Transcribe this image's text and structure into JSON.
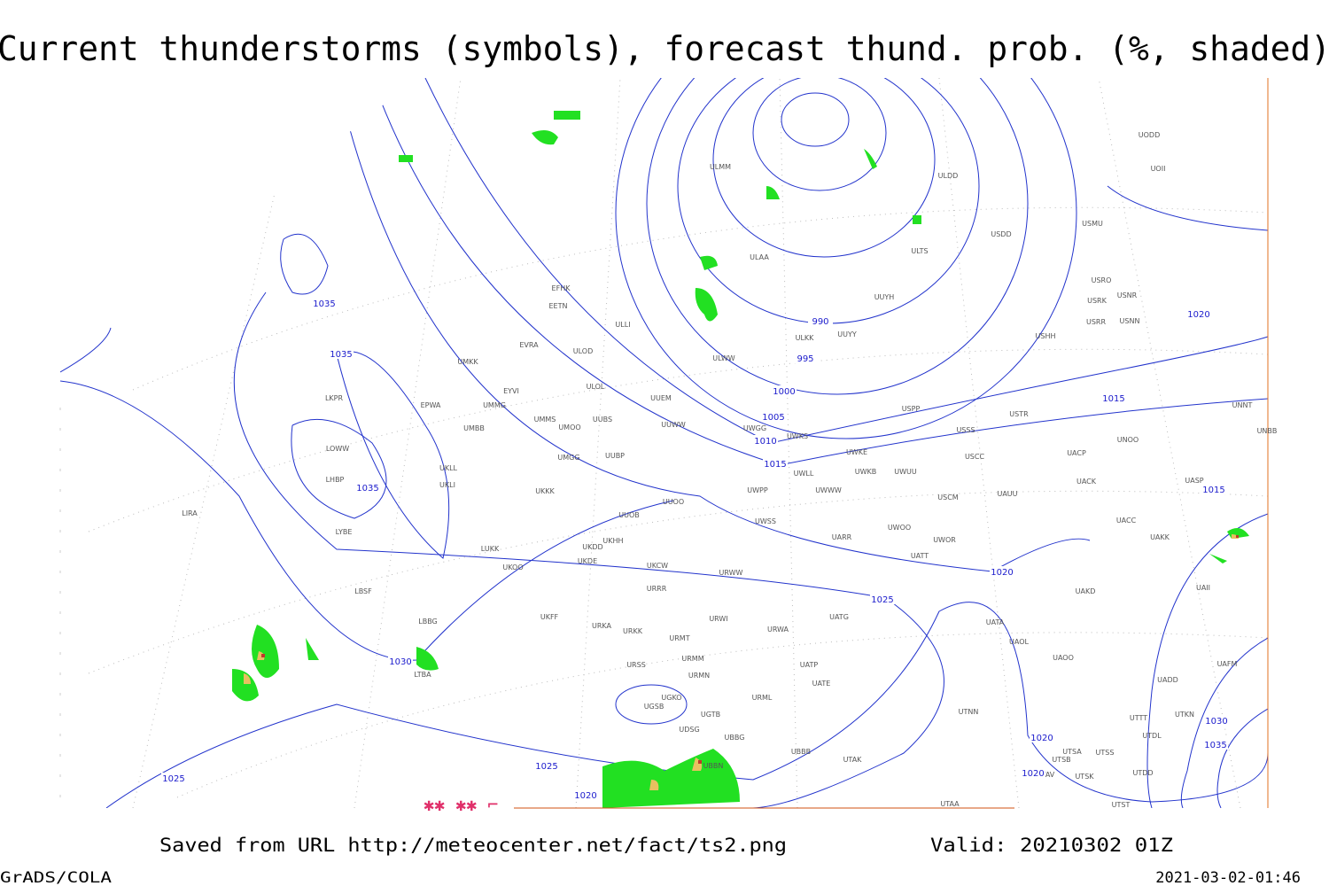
{
  "title": "Current thunderstorms (symbols), forecast thund. prob. (%, shaded)",
  "footer": {
    "saved": "Saved from URL http://meteocenter.net/fact/ts2.png",
    "valid": "Valid: 20210302 01Z",
    "brand": "GrADS/COLA",
    "timestamp": "2021-03-02-01:46"
  },
  "stations": [
    "UODD",
    "UOII",
    "ULDD",
    "ULMM",
    "USMU",
    "USDD",
    "ULTS",
    "ULAA",
    "USRO",
    "USRK",
    "USNR",
    "USRR",
    "USNN",
    "UUYH",
    "ULKK",
    "UUYY",
    "USHH",
    "EFHK",
    "EETN",
    "ULLI",
    "EVRA",
    "ULOD",
    "UMKK",
    "ULWW",
    "ULOL",
    "EYVI",
    "UUEM",
    "EPWA",
    "UMMG",
    "UMMS",
    "UMOO",
    "UUBS",
    "UUWW",
    "UWGG",
    "UWKS",
    "USPP",
    "USTR",
    "USSS",
    "UNOO",
    "UNNT",
    "UNBB",
    "UMBB",
    "LKPR",
    "LOWW",
    "LHBP",
    "UKLL",
    "UKLI",
    "UMGG",
    "UUBP",
    "UWKE",
    "UWKB",
    "UWUU",
    "USCC",
    "UACP",
    "UWLL",
    "UWWW",
    "UWPP",
    "UACK",
    "UASP",
    "USCM",
    "UAUU",
    "LIRA",
    "UKKK",
    "UUOO",
    "UUOB",
    "LYBE",
    "UWSS",
    "UACC",
    "UAKK",
    "UKHH",
    "UKDD",
    "LUKK",
    "UWOO",
    "UWOR",
    "UARR",
    "UATT",
    "UKOO",
    "UKDE",
    "UKCW",
    "URWW",
    "UAKD",
    "LBSF",
    "URRR",
    "UAII",
    "UKFF",
    "URKA",
    "URKK",
    "UATG",
    "URWI",
    "LBBG",
    "UATA",
    "URWA",
    "URMT",
    "UAOL",
    "URMM",
    "UATP",
    "UAOO",
    "UAFM",
    "URSS",
    "LTBA",
    "URMN",
    "UATE",
    "UADD",
    "UGKO",
    "UGSB",
    "URML",
    "UGTB",
    "UTNN",
    "UTKN",
    "UTTT",
    "UDSG",
    "UBBG",
    "UTDL",
    "UBBB",
    "UTSA",
    "UTSS",
    "UTSB",
    "UTAK",
    "UBBN",
    "UTSK",
    "UTDD",
    "UTAV",
    "UTAA",
    "UTST"
  ],
  "isobar_labels": [
    1035,
    1035,
    1035,
    990,
    995,
    1000,
    1005,
    1010,
    1015,
    1015,
    1015,
    1020,
    1020,
    1020,
    1020,
    1020,
    1025,
    1025,
    1025,
    1030,
    1030,
    1035
  ]
}
